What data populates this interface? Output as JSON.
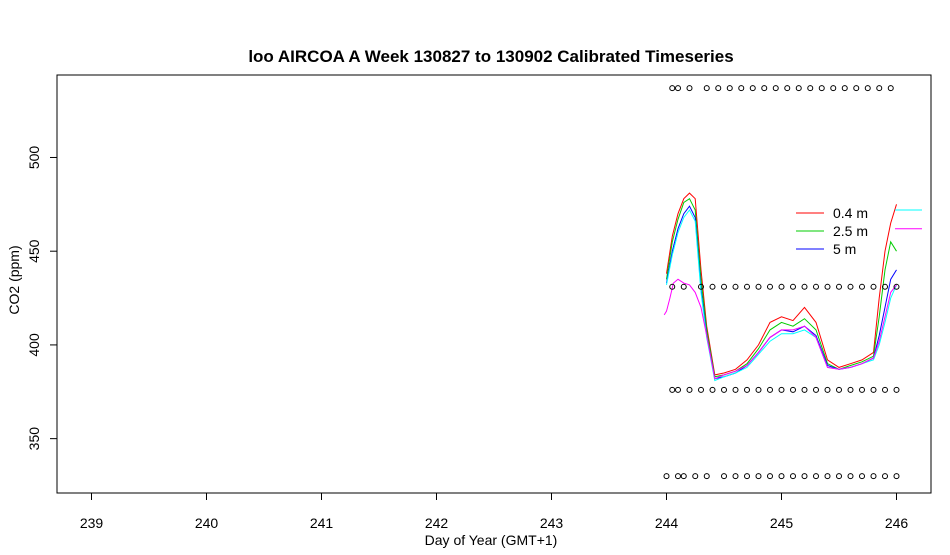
{
  "chart_data": {
    "type": "line",
    "title": "loo AIRCOA A  Week 130827 to 130902  Calibrated Timeseries",
    "xlabel": "Day of Year (GMT+1)",
    "ylabel": "CO2 (ppm)",
    "xlim": [
      238.7,
      246.3
    ],
    "ylim": [
      321,
      544
    ],
    "x_ticks": [
      239,
      240,
      241,
      242,
      243,
      244,
      245,
      246
    ],
    "y_ticks": [
      350,
      400,
      450,
      500
    ],
    "legend": {
      "position": "right",
      "entries": [
        {
          "label": "0.4 m",
          "color": "#ff0000"
        },
        {
          "label": "2.5 m",
          "color": "#00cc00"
        },
        {
          "label": "5 m",
          "color": "#0000ff"
        }
      ],
      "extra_lines": [
        {
          "color": "#00ffff",
          "y": 472
        },
        {
          "color": "#ff00ff",
          "y": 462
        }
      ]
    },
    "series": [
      {
        "name": "0.4 m",
        "color": "#ff0000",
        "x": [
          244.0,
          244.05,
          244.1,
          244.15,
          244.2,
          244.25,
          244.3,
          244.35,
          244.42,
          244.5,
          244.6,
          244.7,
          244.8,
          244.9,
          245.0,
          245.1,
          245.2,
          245.3,
          245.4,
          245.5,
          245.6,
          245.7,
          245.8,
          245.85,
          245.9,
          245.95,
          246.0
        ],
        "y": [
          438,
          458,
          470,
          478,
          481,
          478,
          440,
          410,
          384,
          385,
          387,
          392,
          400,
          412,
          415,
          413,
          420,
          412,
          392,
          388,
          390,
          392,
          396,
          425,
          450,
          465,
          475
        ]
      },
      {
        "name": "2.5 m",
        "color": "#00cc00",
        "x": [
          244.0,
          244.05,
          244.1,
          244.15,
          244.2,
          244.25,
          244.3,
          244.35,
          244.42,
          244.5,
          244.6,
          244.7,
          244.8,
          244.9,
          245.0,
          245.1,
          245.2,
          245.3,
          245.4,
          245.5,
          245.6,
          245.7,
          245.8,
          245.85,
          245.9,
          245.95,
          246.0
        ],
        "y": [
          435,
          455,
          467,
          476,
          478,
          472,
          435,
          408,
          383,
          384,
          386,
          390,
          398,
          408,
          412,
          410,
          414,
          408,
          390,
          387,
          389,
          391,
          394,
          415,
          440,
          455,
          450
        ]
      },
      {
        "name": "5 m",
        "color": "#0000ff",
        "x": [
          244.0,
          244.05,
          244.1,
          244.15,
          244.2,
          244.25,
          244.3,
          244.35,
          244.42,
          244.5,
          244.6,
          244.7,
          244.8,
          244.9,
          245.0,
          245.1,
          245.2,
          245.3,
          245.4,
          245.5,
          245.6,
          245.7,
          245.8,
          245.85,
          245.9,
          245.95,
          246.0
        ],
        "y": [
          433,
          450,
          462,
          470,
          474,
          468,
          430,
          405,
          382,
          383,
          385,
          389,
          396,
          404,
          408,
          407,
          410,
          405,
          389,
          387,
          388,
          390,
          393,
          405,
          420,
          435,
          440
        ]
      },
      {
        "name": "",
        "color": "#00ffff",
        "x": [
          244.0,
          244.05,
          244.1,
          244.15,
          244.2,
          244.25,
          244.3,
          244.35,
          244.42,
          244.5,
          244.6,
          244.7,
          244.8,
          244.9,
          245.0,
          245.1,
          245.2,
          245.3,
          245.4,
          245.5,
          245.6,
          245.7,
          245.8,
          245.85,
          245.9,
          245.95,
          246.0
        ],
        "y": [
          432,
          448,
          460,
          468,
          472,
          466,
          428,
          404,
          381,
          383,
          385,
          388,
          395,
          402,
          406,
          406,
          408,
          404,
          388,
          387,
          388,
          390,
          392,
          400,
          412,
          425,
          432
        ]
      },
      {
        "name": "",
        "color": "#ff00ff",
        "x": [
          243.98,
          244.0,
          244.03,
          244.06,
          244.1,
          244.15,
          244.2,
          244.25,
          244.3,
          244.35,
          244.42,
          244.5,
          244.6,
          244.7,
          244.8,
          244.9,
          245.0,
          245.1,
          245.2,
          245.3,
          245.4,
          245.5,
          245.6,
          245.7,
          245.8,
          245.85,
          245.9,
          245.95,
          246.0
        ],
        "y": [
          416,
          418,
          425,
          433,
          435,
          433,
          432,
          428,
          420,
          405,
          382,
          384,
          386,
          389,
          396,
          404,
          408,
          408,
          410,
          404,
          388,
          387,
          388,
          390,
          393,
          402,
          415,
          428,
          432
        ]
      }
    ],
    "marker_rows": [
      {
        "y": 537,
        "x": [
          244.05,
          244.1,
          244.2,
          244.35,
          244.45,
          244.55,
          244.65,
          244.75,
          244.85,
          244.95,
          245.05,
          245.15,
          245.25,
          245.35,
          245.45,
          245.55,
          245.65,
          245.75,
          245.85,
          245.95
        ]
      },
      {
        "y": 431,
        "x": [
          244.05,
          244.15,
          244.3,
          244.4,
          244.5,
          244.6,
          244.7,
          244.8,
          244.9,
          245.0,
          245.1,
          245.2,
          245.3,
          245.4,
          245.5,
          245.6,
          245.7,
          245.8,
          245.9,
          246.0
        ]
      },
      {
        "y": 376,
        "x": [
          244.05,
          244.1,
          244.2,
          244.3,
          244.4,
          244.5,
          244.6,
          244.7,
          244.8,
          244.9,
          245.0,
          245.1,
          245.2,
          245.3,
          245.4,
          245.5,
          245.6,
          245.7,
          245.8,
          245.9,
          246.0
        ]
      },
      {
        "y": 330,
        "x": [
          244.0,
          244.1,
          244.15,
          244.25,
          244.35,
          244.5,
          244.6,
          244.7,
          244.8,
          244.9,
          245.0,
          245.1,
          245.2,
          245.3,
          245.4,
          245.5,
          245.6,
          245.7,
          245.8,
          245.9,
          246.0
        ]
      }
    ]
  }
}
